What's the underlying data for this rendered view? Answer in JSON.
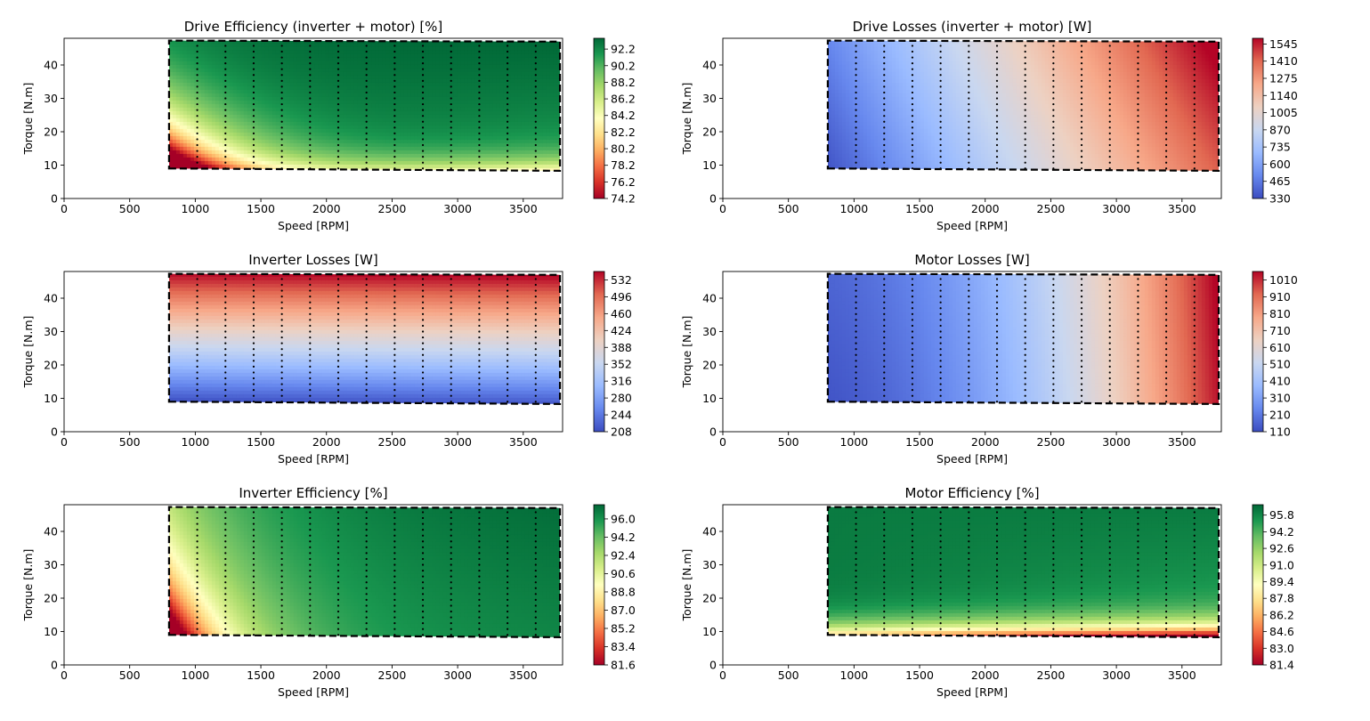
{
  "figure": {
    "background": "#ffffff"
  },
  "colormaps": {
    "RdYlGn": [
      "#a50026",
      "#d73027",
      "#f46d43",
      "#fdae61",
      "#fee08b",
      "#ffffbf",
      "#d9ef8b",
      "#a6d96a",
      "#66bd63",
      "#1a9850",
      "#006837"
    ],
    "coolwarm": [
      "#3b4cc0",
      "#6788ee",
      "#9abbff",
      "#c9d7f0",
      "#edd1c2",
      "#f7a889",
      "#e26952",
      "#b40426"
    ]
  },
  "chart_data": [
    {
      "type": "heatmap",
      "title": "Drive Efficiency (inverter + motor) [%]",
      "xlabel": "Speed [RPM]",
      "ylabel": "Torque [N.m]",
      "xlim": [
        0,
        3800
      ],
      "ylim": [
        0,
        48
      ],
      "xticks": [
        0,
        500,
        1000,
        1500,
        2000,
        2500,
        3000,
        3500
      ],
      "yticks": [
        0,
        10,
        20,
        30,
        40
      ],
      "colormap": "RdYlGn",
      "field": "drive_eff",
      "clim": [
        74.2,
        93.5
      ],
      "colorbar_ticks": [
        "74.2",
        "76.2",
        "78.2",
        "80.2",
        "82.2",
        "84.2",
        "86.2",
        "88.2",
        "90.2",
        "92.2"
      ],
      "region": {
        "speed_min": 800,
        "speed_max": 3780,
        "torque_bottom_at_min": 9.0,
        "torque_bottom_at_max": 8.3,
        "torque_top_at_min": 47.3,
        "torque_top_at_max": 47.0
      },
      "operating_points": {
        "speeds": [
          1015,
          1230,
          1445,
          1660,
          1875,
          2090,
          2305,
          2520,
          2735,
          2950,
          3165,
          3380,
          3595
        ],
        "torque_min": 9,
        "torque_max": 47,
        "torque_step": 1.75
      }
    },
    {
      "type": "heatmap",
      "title": "Drive Losses (inverter + motor) [W]",
      "xlabel": "Speed [RPM]",
      "ylabel": "Torque [N.m]",
      "xlim": [
        0,
        3800
      ],
      "ylim": [
        0,
        48
      ],
      "xticks": [
        0,
        500,
        1000,
        1500,
        2000,
        2500,
        3000,
        3500
      ],
      "yticks": [
        0,
        10,
        20,
        30,
        40
      ],
      "colormap": "coolwarm",
      "field": "drive_loss",
      "clim": [
        330,
        1590
      ],
      "colorbar_ticks": [
        "330",
        "465",
        "600",
        "735",
        "870",
        "1005",
        "1140",
        "1275",
        "1410",
        "1545"
      ],
      "region": {
        "speed_min": 800,
        "speed_max": 3780,
        "torque_bottom_at_min": 9.0,
        "torque_bottom_at_max": 8.3,
        "torque_top_at_min": 47.3,
        "torque_top_at_max": 47.0
      },
      "operating_points": {
        "speeds": [
          1015,
          1230,
          1445,
          1660,
          1875,
          2090,
          2305,
          2520,
          2735,
          2950,
          3165,
          3380,
          3595
        ],
        "torque_min": 9,
        "torque_max": 47,
        "torque_step": 1.75
      }
    },
    {
      "type": "heatmap",
      "title": "Inverter Losses [W]",
      "xlabel": "Speed [RPM]",
      "ylabel": "Torque [N.m]",
      "xlim": [
        0,
        3800
      ],
      "ylim": [
        0,
        48
      ],
      "xticks": [
        0,
        500,
        1000,
        1500,
        2000,
        2500,
        3000,
        3500
      ],
      "yticks": [
        0,
        10,
        20,
        30,
        40
      ],
      "colormap": "coolwarm",
      "field": "inv_loss",
      "clim": [
        208,
        550
      ],
      "colorbar_ticks": [
        "208",
        "244",
        "280",
        "316",
        "352",
        "388",
        "424",
        "460",
        "496",
        "532"
      ],
      "region": {
        "speed_min": 800,
        "speed_max": 3780,
        "torque_bottom_at_min": 9.0,
        "torque_bottom_at_max": 8.3,
        "torque_top_at_min": 47.3,
        "torque_top_at_max": 47.0
      },
      "operating_points": {
        "speeds": [
          1015,
          1230,
          1445,
          1660,
          1875,
          2090,
          2305,
          2520,
          2735,
          2950,
          3165,
          3380,
          3595
        ],
        "torque_min": 9,
        "torque_max": 47,
        "torque_step": 1.75
      }
    },
    {
      "type": "heatmap",
      "title": "Motor Losses [W]",
      "xlabel": "Speed [RPM]",
      "ylabel": "Torque [N.m]",
      "xlim": [
        0,
        3800
      ],
      "ylim": [
        0,
        48
      ],
      "xticks": [
        0,
        500,
        1000,
        1500,
        2000,
        2500,
        3000,
        3500
      ],
      "yticks": [
        0,
        10,
        20,
        30,
        40
      ],
      "colormap": "coolwarm",
      "field": "mot_loss",
      "clim": [
        110,
        1060
      ],
      "colorbar_ticks": [
        "110",
        "210",
        "310",
        "410",
        "510",
        "610",
        "710",
        "810",
        "910",
        "1010"
      ],
      "region": {
        "speed_min": 800,
        "speed_max": 3780,
        "torque_bottom_at_min": 9.0,
        "torque_bottom_at_max": 8.3,
        "torque_top_at_min": 47.3,
        "torque_top_at_max": 47.0
      },
      "operating_points": {
        "speeds": [
          1015,
          1230,
          1445,
          1660,
          1875,
          2090,
          2305,
          2520,
          2735,
          2950,
          3165,
          3380,
          3595
        ],
        "torque_min": 9,
        "torque_max": 47,
        "torque_step": 1.75
      }
    },
    {
      "type": "heatmap",
      "title": "Inverter Efficiency [%]",
      "xlabel": "Speed [RPM]",
      "ylabel": "Torque [N.m]",
      "xlim": [
        0,
        3800
      ],
      "ylim": [
        0,
        48
      ],
      "xticks": [
        0,
        500,
        1000,
        1500,
        2000,
        2500,
        3000,
        3500
      ],
      "yticks": [
        0,
        10,
        20,
        30,
        40
      ],
      "colormap": "RdYlGn",
      "field": "inv_eff",
      "clim": [
        81.6,
        97.4
      ],
      "colorbar_ticks": [
        "81.6",
        "83.4",
        "85.2",
        "87.0",
        "88.8",
        "90.6",
        "92.4",
        "94.2",
        "96.0"
      ],
      "region": {
        "speed_min": 800,
        "speed_max": 3780,
        "torque_bottom_at_min": 9.0,
        "torque_bottom_at_max": 8.3,
        "torque_top_at_min": 47.3,
        "torque_top_at_max": 47.0
      },
      "operating_points": {
        "speeds": [
          1015,
          1230,
          1445,
          1660,
          1875,
          2090,
          2305,
          2520,
          2735,
          2950,
          3165,
          3380,
          3595
        ],
        "torque_min": 9,
        "torque_max": 47,
        "torque_step": 1.75
      }
    },
    {
      "type": "heatmap",
      "title": "Motor Efficiency [%]",
      "xlabel": "Speed [RPM]",
      "ylabel": "Torque [N.m]",
      "xlim": [
        0,
        3800
      ],
      "ylim": [
        0,
        48
      ],
      "xticks": [
        0,
        500,
        1000,
        1500,
        2000,
        2500,
        3000,
        3500
      ],
      "yticks": [
        0,
        10,
        20,
        30,
        40
      ],
      "colormap": "RdYlGn",
      "field": "mot_eff",
      "clim": [
        81.4,
        96.8
      ],
      "colorbar_ticks": [
        "81.4",
        "83.0",
        "84.6",
        "86.2",
        "87.8",
        "89.4",
        "91.0",
        "92.6",
        "94.2",
        "95.8"
      ],
      "region": {
        "speed_min": 800,
        "speed_max": 3780,
        "torque_bottom_at_min": 9.0,
        "torque_bottom_at_max": 8.3,
        "torque_top_at_min": 47.3,
        "torque_top_at_max": 47.0
      },
      "operating_points": {
        "speeds": [
          1015,
          1230,
          1445,
          1660,
          1875,
          2090,
          2305,
          2520,
          2735,
          2950,
          3165,
          3380,
          3595
        ],
        "torque_min": 9,
        "torque_max": 47,
        "torque_step": 1.75
      }
    }
  ]
}
